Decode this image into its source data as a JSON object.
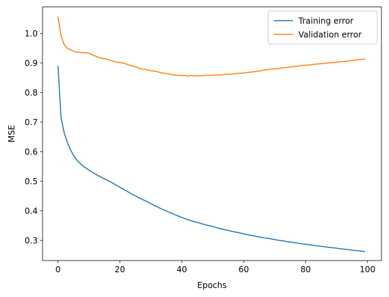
{
  "chart_data": {
    "type": "line",
    "title": "",
    "xlabel": "Epochs",
    "ylabel": "MSE",
    "xlim": [
      -5,
      104.5
    ],
    "ylim": [
      0.232,
      1.09
    ],
    "xticks": [
      0,
      20,
      40,
      60,
      80,
      100
    ],
    "yticks": [
      0.3,
      0.4,
      0.5,
      0.6,
      0.7,
      0.8,
      0.9,
      1.0
    ],
    "xtick_labels": [
      "0",
      "20",
      "40",
      "60",
      "80",
      "100"
    ],
    "ytick_labels": [
      "0.3",
      "0.4",
      "0.5",
      "0.6",
      "0.7",
      "0.8",
      "0.9",
      "1.0"
    ],
    "grid": false,
    "legend": "top-right",
    "x": [
      0,
      1,
      2,
      3,
      4,
      5,
      6,
      7,
      8,
      9,
      10,
      11,
      12,
      13,
      14,
      15,
      16,
      17,
      18,
      19,
      20,
      21,
      22,
      23,
      24,
      25,
      26,
      27,
      28,
      29,
      30,
      31,
      32,
      33,
      34,
      35,
      36,
      37,
      38,
      39,
      40,
      41,
      42,
      43,
      44,
      45,
      46,
      47,
      48,
      49,
      50,
      51,
      52,
      53,
      54,
      55,
      56,
      57,
      58,
      59,
      60,
      61,
      62,
      63,
      64,
      65,
      66,
      67,
      68,
      69,
      70,
      71,
      72,
      73,
      74,
      75,
      76,
      77,
      78,
      79,
      80,
      81,
      82,
      83,
      84,
      85,
      86,
      87,
      88,
      89,
      90,
      91,
      92,
      93,
      94,
      95,
      96,
      97,
      98,
      99
    ],
    "series": [
      {
        "name": "Training error",
        "color": "#1f77b4",
        "values": [
          0.889,
          0.713,
          0.664,
          0.632,
          0.607,
          0.588,
          0.573,
          0.562,
          0.552,
          0.545,
          0.538,
          0.531,
          0.525,
          0.519,
          0.514,
          0.508,
          0.503,
          0.498,
          0.492,
          0.486,
          0.48,
          0.474,
          0.468,
          0.462,
          0.456,
          0.451,
          0.445,
          0.44,
          0.435,
          0.43,
          0.424,
          0.419,
          0.414,
          0.409,
          0.404,
          0.4,
          0.395,
          0.391,
          0.386,
          0.382,
          0.378,
          0.374,
          0.37,
          0.367,
          0.364,
          0.361,
          0.358,
          0.355,
          0.352,
          0.35,
          0.347,
          0.344,
          0.341,
          0.339,
          0.336,
          0.334,
          0.331,
          0.329,
          0.327,
          0.325,
          0.322,
          0.32,
          0.318,
          0.316,
          0.314,
          0.312,
          0.31,
          0.308,
          0.307,
          0.305,
          0.303,
          0.301,
          0.3,
          0.298,
          0.296,
          0.295,
          0.293,
          0.292,
          0.29,
          0.288,
          0.287,
          0.286,
          0.284,
          0.283,
          0.281,
          0.28,
          0.279,
          0.277,
          0.276,
          0.275,
          0.274,
          0.272,
          0.271,
          0.27,
          0.269,
          0.267,
          0.266,
          0.265,
          0.264,
          0.263
        ]
      },
      {
        "name": "Validation error",
        "color": "#ff7f0e",
        "values": [
          1.056,
          0.992,
          0.962,
          0.95,
          0.945,
          0.94,
          0.937,
          0.936,
          0.935,
          0.935,
          0.933,
          0.928,
          0.924,
          0.92,
          0.916,
          0.915,
          0.912,
          0.909,
          0.906,
          0.903,
          0.902,
          0.9,
          0.897,
          0.893,
          0.89,
          0.888,
          0.883,
          0.88,
          0.879,
          0.876,
          0.874,
          0.873,
          0.871,
          0.868,
          0.866,
          0.865,
          0.863,
          0.86,
          0.86,
          0.858,
          0.858,
          0.858,
          0.856,
          0.858,
          0.856,
          0.857,
          0.857,
          0.858,
          0.859,
          0.858,
          0.859,
          0.86,
          0.859,
          0.86,
          0.862,
          0.862,
          0.863,
          0.864,
          0.865,
          0.866,
          0.866,
          0.868,
          0.869,
          0.87,
          0.872,
          0.873,
          0.875,
          0.877,
          0.878,
          0.88,
          0.88,
          0.881,
          0.883,
          0.884,
          0.885,
          0.887,
          0.888,
          0.889,
          0.89,
          0.892,
          0.893,
          0.893,
          0.895,
          0.896,
          0.897,
          0.898,
          0.899,
          0.9,
          0.901,
          0.902,
          0.903,
          0.904,
          0.905,
          0.906,
          0.907,
          0.909,
          0.91,
          0.911,
          0.912,
          0.913
        ]
      }
    ]
  }
}
